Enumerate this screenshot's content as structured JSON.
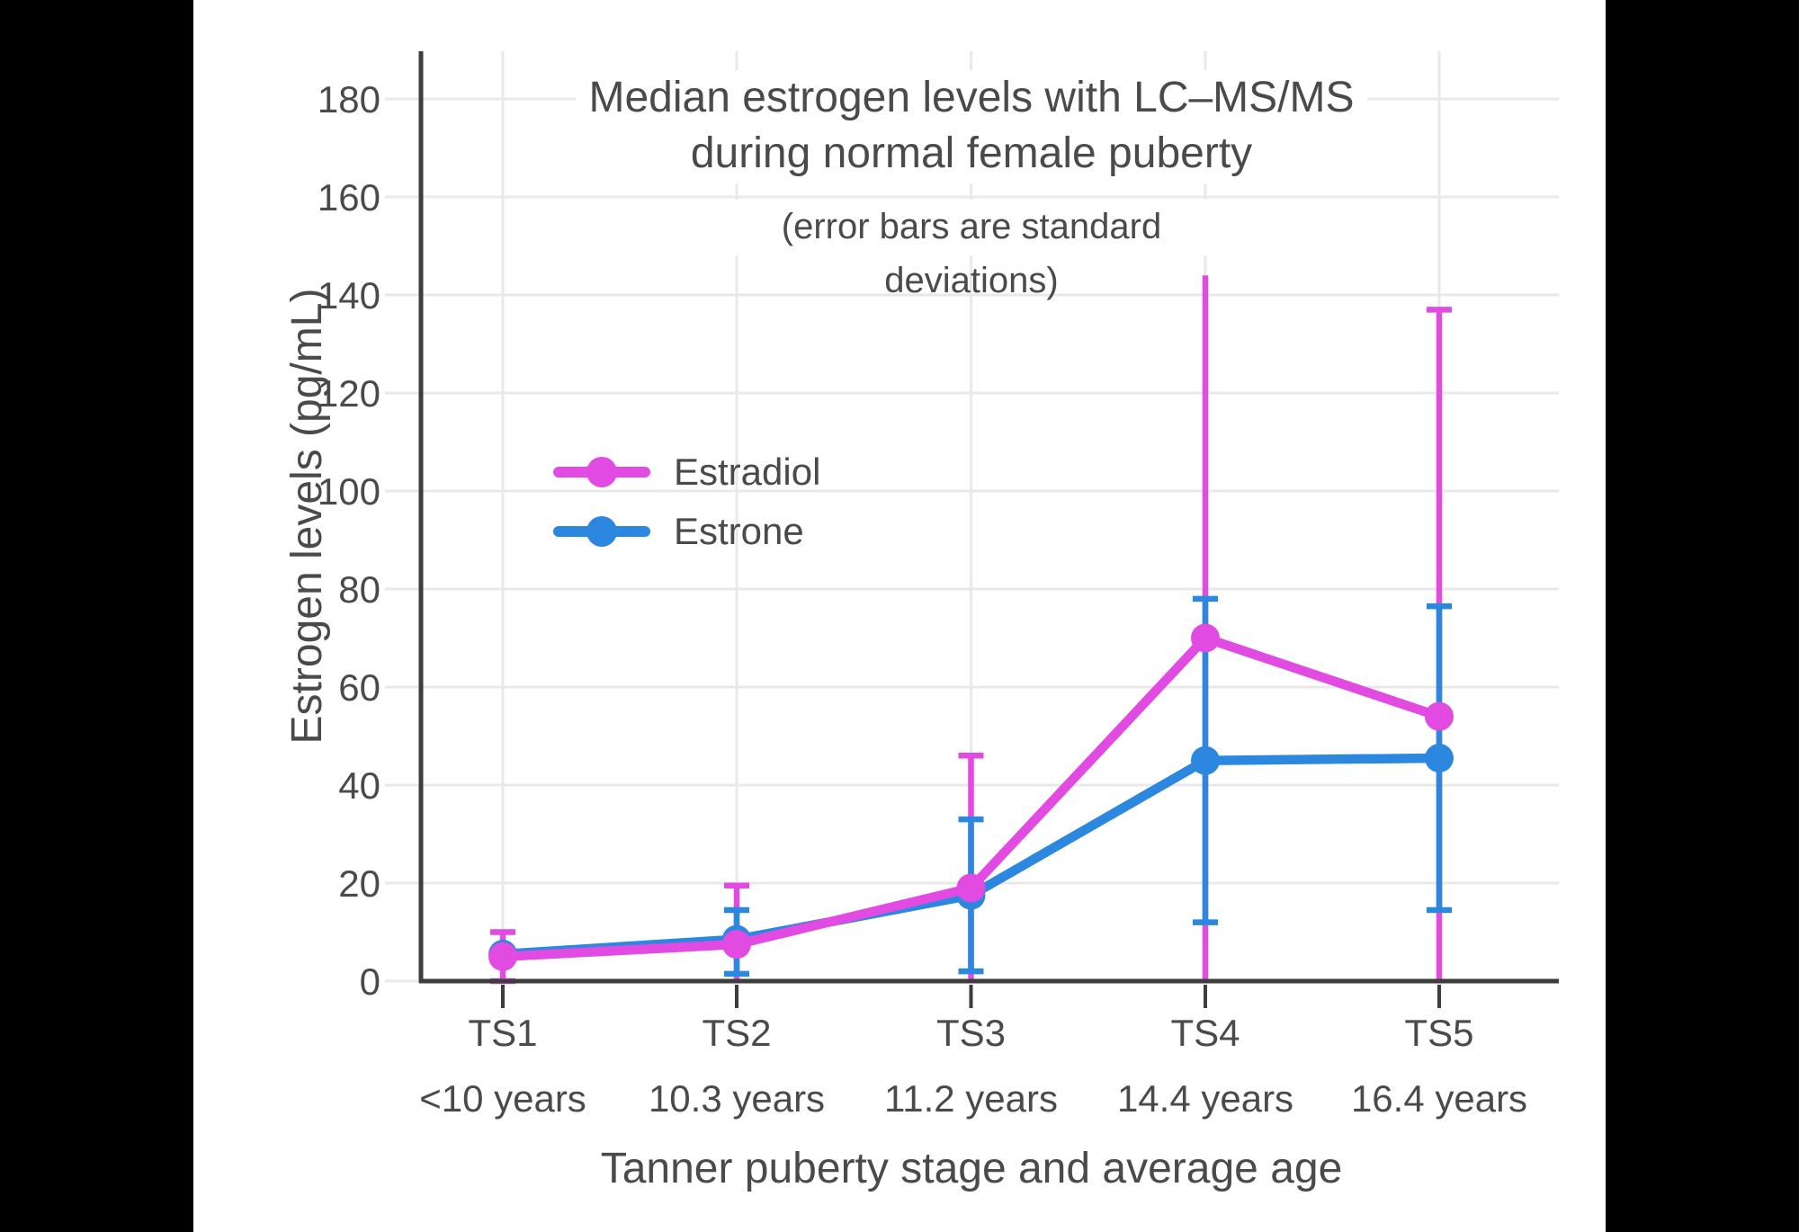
{
  "page": {
    "background": "#000000",
    "sheet_background": "#ffffff"
  },
  "chart_data": {
    "type": "line",
    "title_line1": "Median estrogen levels with LC–MS/MS",
    "title_line2": "during normal female puberty",
    "subtitle": "(error bars are standard deviations)",
    "xlabel": "Tanner puberty stage and average age",
    "ylabel": "Estrogen levels (pg/mL)",
    "categories": [
      {
        "stage": "TS1",
        "age": "<10 years"
      },
      {
        "stage": "TS2",
        "age": "10.3 years"
      },
      {
        "stage": "TS3",
        "age": "11.2 years"
      },
      {
        "stage": "TS4",
        "age": "14.4 years"
      },
      {
        "stage": "TS5",
        "age": "16.4 years"
      }
    ],
    "yticks": [
      0,
      20,
      40,
      60,
      80,
      100,
      120,
      140,
      160,
      180
    ],
    "ylim": [
      0,
      190
    ],
    "grid": true,
    "legend_position": "inside-upper-left",
    "series": [
      {
        "name": "Estradiol",
        "color": "#E14BE1",
        "values": [
          5,
          7.5,
          19,
          70,
          54
        ],
        "error_upper": [
          10,
          19.5,
          46,
          144,
          137
        ],
        "error_upper_cap": [
          true,
          true,
          true,
          false,
          true
        ],
        "error_lower": [
          0,
          0,
          0,
          0,
          0
        ],
        "error_lower_cap": [
          true,
          false,
          false,
          false,
          false
        ]
      },
      {
        "name": "Estrone",
        "color": "#2C87DF",
        "values": [
          5.5,
          8.5,
          17.5,
          45,
          45.5
        ],
        "error_upper": [
          null,
          14.5,
          33,
          78,
          76.5
        ],
        "error_upper_cap": [
          false,
          true,
          true,
          true,
          true
        ],
        "error_lower": [
          null,
          1.5,
          2,
          12,
          14.5
        ],
        "error_lower_cap": [
          false,
          true,
          true,
          true,
          true
        ]
      }
    ],
    "axis_color": "#3D3D3D",
    "grid_color": "#E9E9E9",
    "text_color": "#4A4A4A"
  },
  "legend": {
    "items": [
      {
        "label": "Estradiol"
      },
      {
        "label": "Estrone"
      }
    ]
  }
}
